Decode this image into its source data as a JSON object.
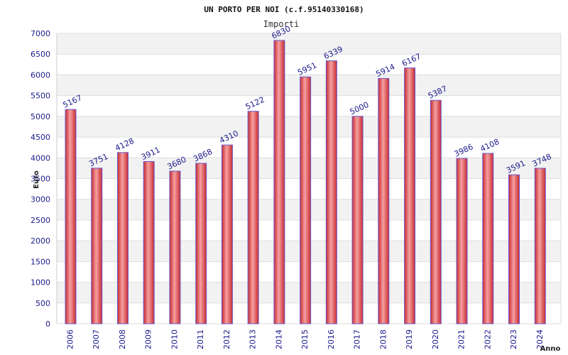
{
  "chart_data": {
    "type": "bar",
    "title": "UN PORTO PER NOI (c.f.95140330168)",
    "subtitle": "Importi",
    "xlabel": "Anno",
    "ylabel": "Euro",
    "ylim": [
      0,
      7000
    ],
    "yticks": [
      0,
      500,
      1000,
      1500,
      2000,
      2500,
      3000,
      3500,
      4000,
      4500,
      5000,
      5500,
      6000,
      6500,
      7000
    ],
    "categories": [
      "2006",
      "2007",
      "2008",
      "2009",
      "2010",
      "2011",
      "2012",
      "2013",
      "2014",
      "2015",
      "2016",
      "2017",
      "2018",
      "2019",
      "2020",
      "2021",
      "2022",
      "2023",
      "2024"
    ],
    "values": [
      5167,
      3751,
      4128,
      3911,
      3680,
      3868,
      4310,
      5122,
      6830,
      5951,
      6339,
      5000,
      5914,
      6167,
      5387,
      3986,
      4108,
      3591,
      3748
    ],
    "grid": true,
    "colors": {
      "bar": "#e03a3e",
      "bar_highlight": "#f6a0a0",
      "bar_edge": "#6a5acd",
      "band": "#f2f2f2",
      "text": "#1a1a8c"
    }
  }
}
